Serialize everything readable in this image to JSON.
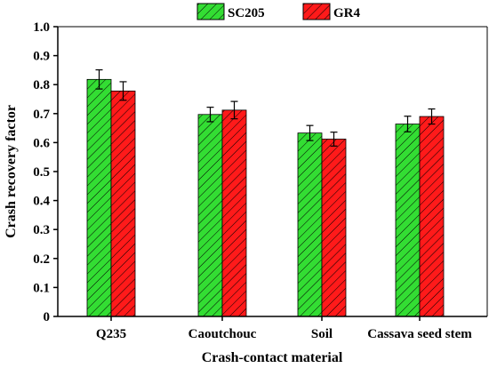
{
  "chart_data": {
    "type": "bar",
    "title": "",
    "xlabel": "Crash-contact material",
    "ylabel": "Crash recovery factor",
    "categories": [
      "Q235",
      "Caoutchouc",
      "Soil",
      "Cassava seed stem"
    ],
    "series": [
      {
        "name": "SC205",
        "values": [
          0.818,
          0.697,
          0.633,
          0.664
        ],
        "errors": [
          0.033,
          0.025,
          0.026,
          0.027
        ],
        "color": "#33dd33",
        "hatch": "diagonal"
      },
      {
        "name": "GR4",
        "values": [
          0.778,
          0.712,
          0.612,
          0.69
        ],
        "errors": [
          0.032,
          0.03,
          0.024,
          0.026
        ],
        "color": "#ff1a1a",
        "hatch": "diagonal"
      }
    ],
    "ylim": [
      0,
      1.0
    ],
    "yticks": [
      "0",
      "0.1",
      "0.2",
      "0.3",
      "0.4",
      "0.5",
      "0.6",
      "0.7",
      "0.8",
      "0.9",
      "1.0"
    ],
    "grid": false,
    "legend_position": "top-center"
  }
}
